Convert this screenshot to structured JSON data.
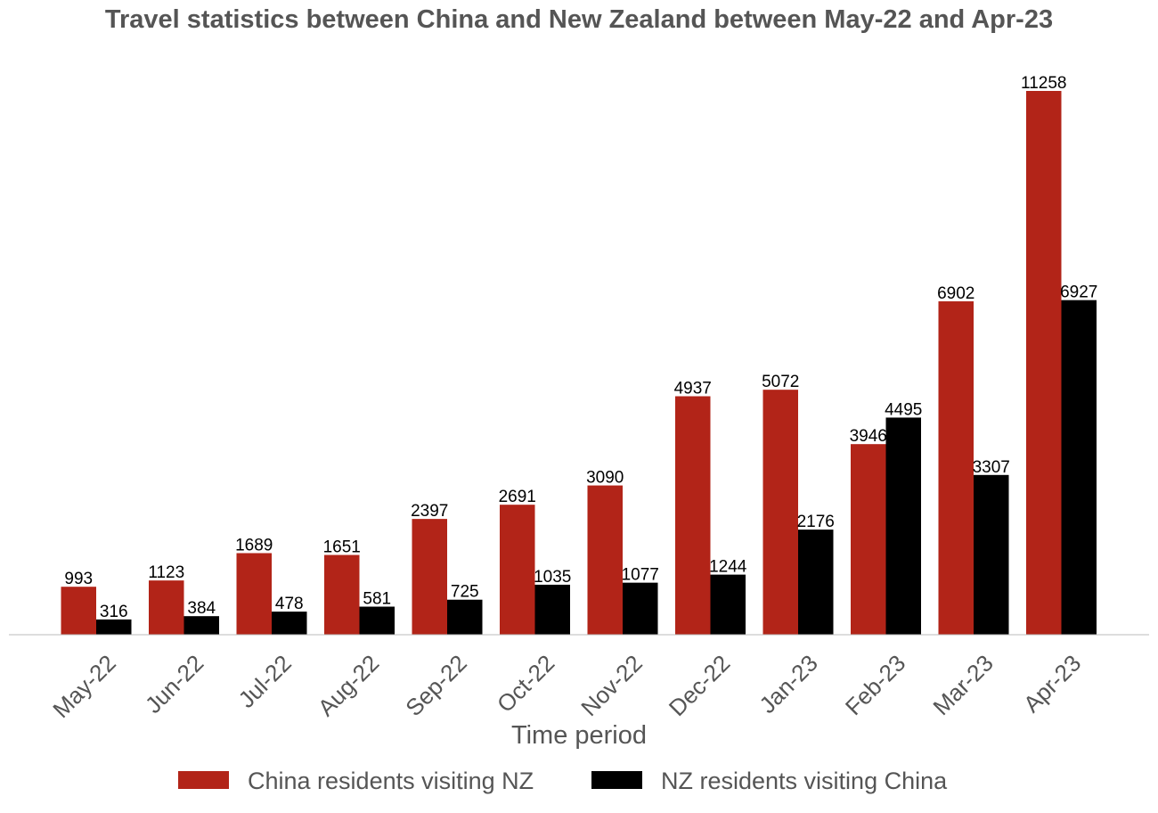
{
  "chart_data": {
    "type": "bar",
    "title": "Travel statistics between China and New Zealand between May-22 and Apr-23",
    "xlabel": "Time period",
    "ylabel": "",
    "categories": [
      "May-22",
      "Jun-22",
      "Jul-22",
      "Aug-22",
      "Sep-22",
      "Oct-22",
      "Nov-22",
      "Dec-22",
      "Jan-23",
      "Feb-23",
      "Mar-23",
      "Apr-23"
    ],
    "series": [
      {
        "name": "China residents visiting NZ",
        "color": "#b22418",
        "values": [
          993,
          1123,
          1689,
          1651,
          2397,
          2691,
          3090,
          4937,
          5072,
          3946,
          6902,
          11258
        ]
      },
      {
        "name": "NZ residents visiting China",
        "color": "#000000",
        "values": [
          316,
          384,
          478,
          581,
          725,
          1035,
          1077,
          1244,
          2176,
          4495,
          3307,
          6927
        ]
      }
    ],
    "ylim": [
      0,
      11800
    ],
    "grid": false,
    "legend_position": "bottom-center",
    "axis_color": "#bbbbbb"
  }
}
